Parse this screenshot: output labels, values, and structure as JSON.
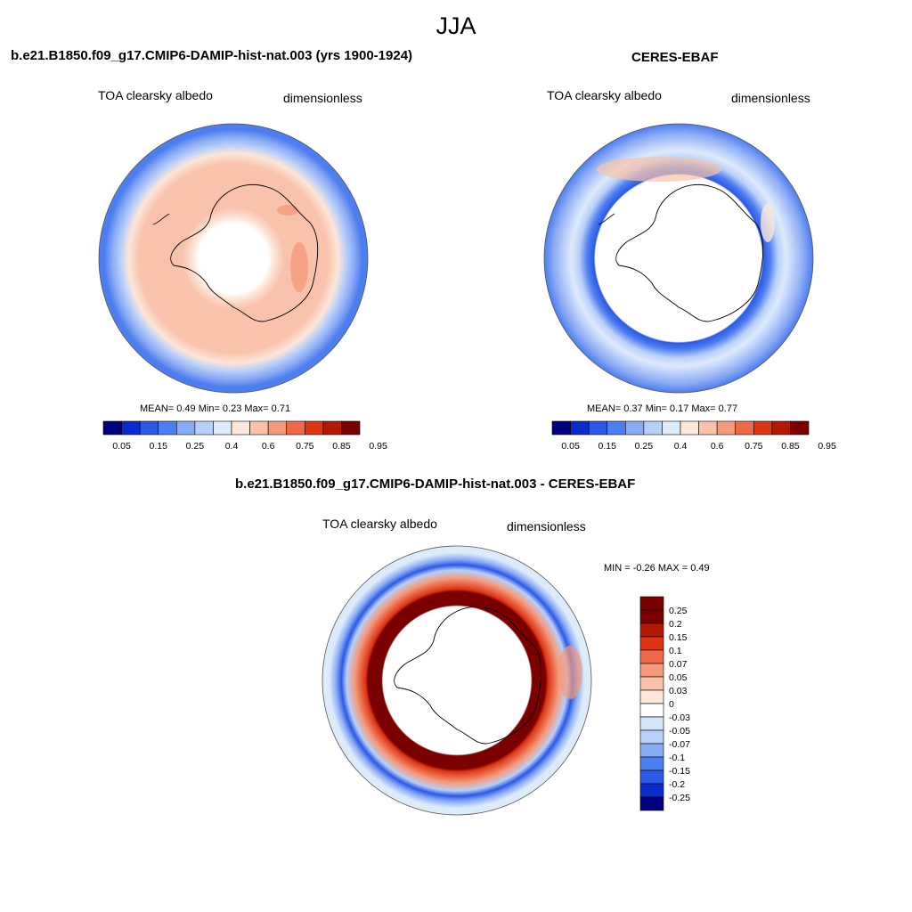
{
  "season": "JJA",
  "panels": [
    {
      "title": "b.e21.B1850.f09_g17.CMIP6-DAMIP-hist-nat.003 (yrs 1900-1924)",
      "left_label": "TOA clearsky albedo",
      "right_label": "dimensionless",
      "stats": "MEAN=   0.49  Min=   0.23  Max=   0.71",
      "colorbar_labels": [
        "0.05",
        "0.15",
        "0.25",
        "0.4",
        "0.6",
        "0.75",
        "0.85",
        "0.95"
      ]
    },
    {
      "title": "CERES-EBAF",
      "left_label": "TOA clearsky albedo",
      "right_label": "dimensionless",
      "stats": "MEAN=   0.37  Min=   0.17  Max=   0.77",
      "colorbar_labels": [
        "0.05",
        "0.15",
        "0.25",
        "0.4",
        "0.6",
        "0.75",
        "0.85",
        "0.95"
      ]
    },
    {
      "title": "b.e21.B1850.f09_g17.CMIP6-DAMIP-hist-nat.003 - CERES-EBAF",
      "left_label": "TOA clearsky albedo",
      "right_label": "dimensionless",
      "stats": "MIN =  -0.26 MAX =   0.49",
      "colorbar_labels": [
        "0.25",
        "0.2",
        "0.15",
        "0.1",
        "0.07",
        "0.05",
        "0.03",
        "0",
        "-0.03",
        "-0.05",
        "-0.07",
        "-0.1",
        "-0.15",
        "-0.2",
        "-0.25"
      ]
    }
  ],
  "colors": {
    "abs_scale": [
      "#00007f",
      "#0a2ccf",
      "#2b59e6",
      "#4d7ef0",
      "#8aabf5",
      "#b8cff8",
      "#deebfb",
      "#fde7da",
      "#f9c2aa",
      "#f59a7c",
      "#ee6a48",
      "#dd3513",
      "#b51800",
      "#7a0000"
    ],
    "diff_scale": [
      "#7a0000",
      "#b51800",
      "#dd3513",
      "#ee6a48",
      "#f59a7c",
      "#f9c2aa",
      "#fde7da",
      "#ffffff",
      "#d6e6fb",
      "#b8cff8",
      "#8aabf5",
      "#4d7ef0",
      "#2b59e6",
      "#0a2ccf",
      "#00007f"
    ]
  }
}
